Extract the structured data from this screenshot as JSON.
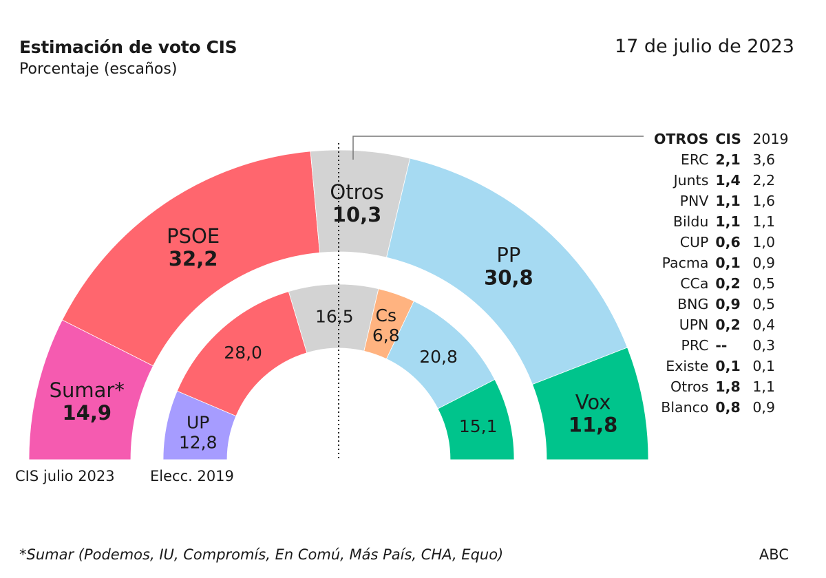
{
  "header": {
    "title": "Estimación de voto CIS",
    "subtitle": "Porcentaje (escaños)",
    "date": "17 de julio de 2023"
  },
  "chart_data": {
    "type": "pie",
    "variant": "nested semicircle donut",
    "title": "Estimación de voto CIS",
    "subtitle": "Porcentaje (escaños)",
    "rings": [
      {
        "name": "CIS julio 2023",
        "position": "outer",
        "segments": [
          {
            "label": "Sumar*",
            "value": 14.9,
            "value_text": "14,9",
            "color": "#f55bb0"
          },
          {
            "label": "PSOE",
            "value": 32.2,
            "value_text": "32,2",
            "color": "#ff666e"
          },
          {
            "label": "Otros",
            "value": 10.3,
            "value_text": "10,3",
            "color": "#d3d3d3"
          },
          {
            "label": "PP",
            "value": 30.8,
            "value_text": "30,8",
            "color": "#a6daf2"
          },
          {
            "label": "Vox",
            "value": 11.8,
            "value_text": "11,8",
            "color": "#00c48c"
          }
        ]
      },
      {
        "name": "Elecc. 2019",
        "position": "inner",
        "segments": [
          {
            "label": "UP",
            "value": 12.8,
            "value_text": "12,8",
            "color": "#a69cff",
            "show_label": true
          },
          {
            "label": "PSOE",
            "value": 28.0,
            "value_text": "28,0",
            "color": "#ff666e",
            "show_label": false
          },
          {
            "label": "Otros",
            "value": 16.5,
            "value_text": "16,5",
            "color": "#d3d3d3",
            "show_label": false
          },
          {
            "label": "Cs",
            "value": 6.8,
            "value_text": "6,8",
            "color": "#ffb380",
            "show_label": true
          },
          {
            "label": "PP",
            "value": 20.8,
            "value_text": "20,8",
            "color": "#a6daf2",
            "show_label": false
          },
          {
            "label": "Vox",
            "value": 15.1,
            "value_text": "15,1",
            "color": "#00c48c",
            "show_label": false
          }
        ]
      }
    ]
  },
  "otros_table": {
    "headers": {
      "party": "OTROS",
      "cis": "CIS",
      "y2019": "2019"
    },
    "rows": [
      {
        "party": "ERC",
        "cis": "2,1",
        "y2019": "3,6"
      },
      {
        "party": "Junts",
        "cis": "1,4",
        "y2019": "2,2"
      },
      {
        "party": "PNV",
        "cis": "1,1",
        "y2019": "1,6"
      },
      {
        "party": "Bildu",
        "cis": "1,1",
        "y2019": "1,1"
      },
      {
        "party": "CUP",
        "cis": "0,6",
        "y2019": "1,0"
      },
      {
        "party": "Pacma",
        "cis": "0,1",
        "y2019": "0,9"
      },
      {
        "party": "CCa",
        "cis": "0,2",
        "y2019": "0,5"
      },
      {
        "party": "BNG",
        "cis": "0,9",
        "y2019": "0,5"
      },
      {
        "party": "UPN",
        "cis": "0,2",
        "y2019": "0,4"
      },
      {
        "party": "PRC",
        "cis": "--",
        "y2019": "0,3"
      },
      {
        "party": "Existe",
        "cis": "0,1",
        "y2019": "0,1"
      },
      {
        "party": "Otros",
        "cis": "1,8",
        "y2019": "1,1"
      },
      {
        "party": "Blanco",
        "cis": "0,8",
        "y2019": "0,9"
      }
    ]
  },
  "footer": {
    "footnote": "*Sumar (Podemos, IU, Compromís, En Comú, Más País, CHA, Equo)",
    "source": "ABC"
  }
}
